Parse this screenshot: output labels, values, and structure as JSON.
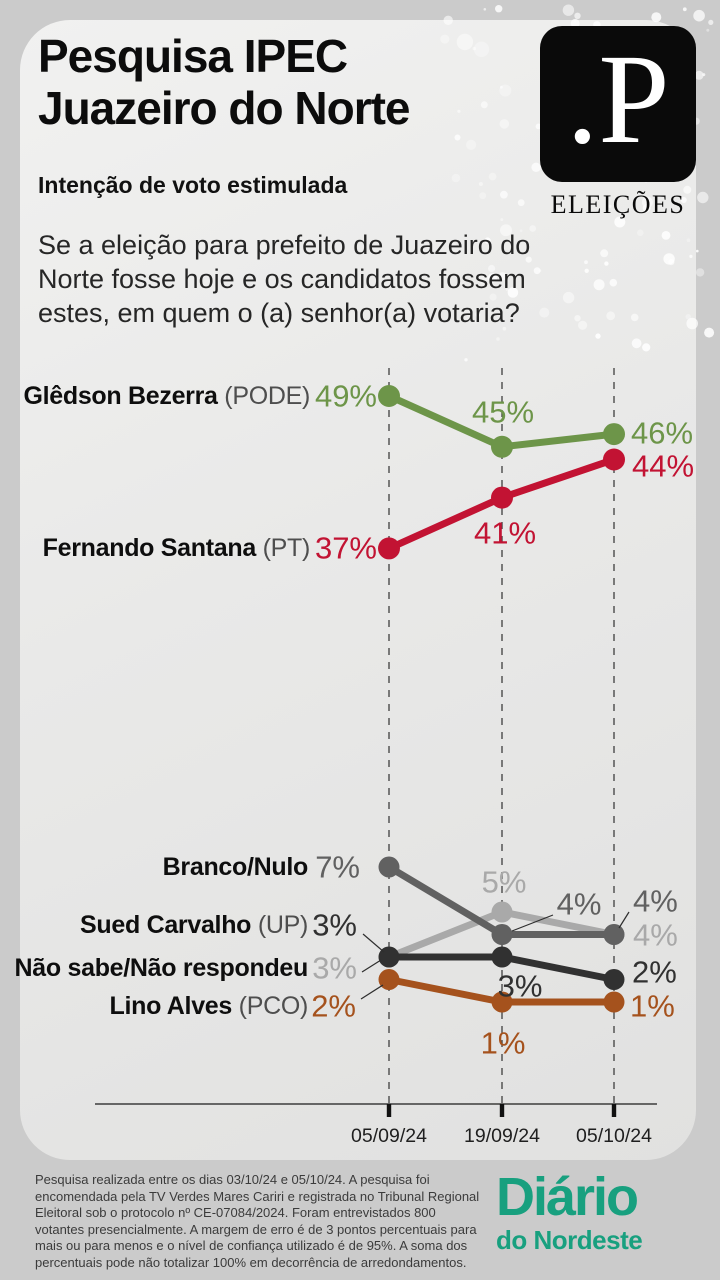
{
  "header": {
    "title_line1": "Pesquisa IPEC",
    "title_line2": "Juazeiro do Norte",
    "subtitle": "Intenção de voto estimulada",
    "question": "Se a eleição para prefeito de Juazeiro do Norte fosse hoje e os candidatos fossem estes, em quem o (a) senhor(a) votaria?"
  },
  "logo": {
    "monogram": ".P",
    "wordmark": "ELEIÇÕES"
  },
  "chart_data": {
    "type": "line",
    "title": "Intenção de voto estimulada",
    "x_labels": [
      "05/09/24",
      "19/09/24",
      "05/10/24"
    ],
    "value_suffix": "%",
    "ylim_top_group": [
      37,
      49
    ],
    "ylim_bottom_group": [
      1,
      7
    ],
    "grid": "dashed-vertical",
    "series": [
      {
        "name": "Glêdson Bezerra",
        "party": "(PODE)",
        "color": "#6d9549",
        "group": "top",
        "values": [
          49,
          45,
          46
        ]
      },
      {
        "name": "Fernando Santana",
        "party": "(PT)",
        "color": "#c21333",
        "group": "top",
        "values": [
          37,
          41,
          44
        ]
      },
      {
        "name": "Branco/Nulo",
        "party": "",
        "color": "#616161",
        "group": "bottom",
        "values": [
          7,
          4,
          4
        ]
      },
      {
        "name": "Sued Carvalho",
        "party": "(UP)",
        "color": "#313131",
        "group": "bottom",
        "values": [
          3,
          3,
          2
        ]
      },
      {
        "name": "Não sabe/Não respondeu",
        "party": "",
        "color": "#a9a9a9",
        "group": "bottom",
        "values": [
          3,
          5,
          4
        ]
      },
      {
        "name": "Lino Alves",
        "party": "(PCO)",
        "color": "#a5521d",
        "group": "bottom",
        "values": [
          2,
          1,
          1
        ]
      }
    ]
  },
  "footer": {
    "note": "Pesquisa realizada entre os dias 03/10/24 e 05/10/24. A pesquisa foi encomendada pela TV Verdes Mares Cariri e registrada no Tribunal Regional Eleitoral sob o protocolo nº CE-07084/2024. Foram entrevistados 800 votantes presencialmente. A margem de erro é de 3 pontos percentuais para mais ou para menos e o nível de confiança utilizado é de 95%. A soma dos percentuais pode não totalizar 100% em decorrência de arredondamentos.",
    "brand_line1": "Diário",
    "brand_line2": "do Nordeste",
    "brand_color": "#18a07f"
  }
}
